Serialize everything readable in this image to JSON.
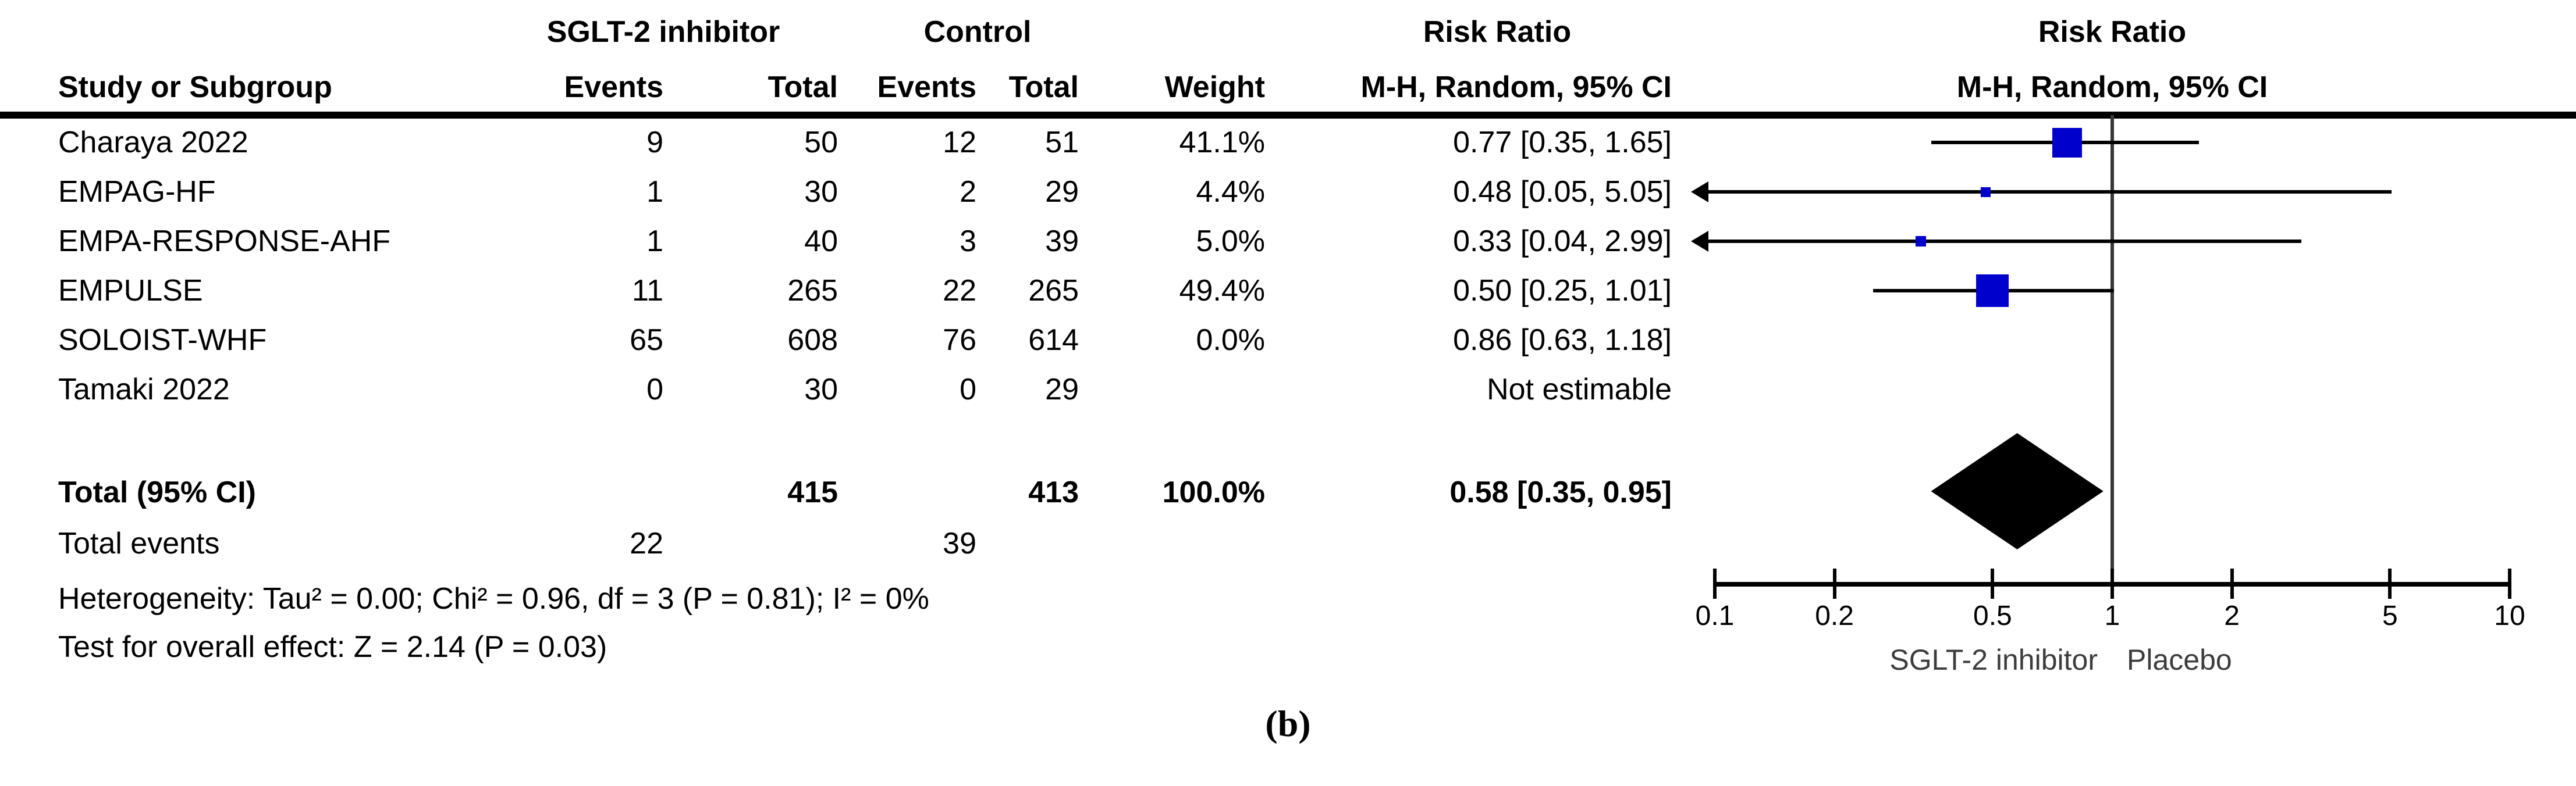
{
  "table": {
    "group1_header": "SGLT-2 inhibitor",
    "group2_header": "Control",
    "rr_header1": "Risk Ratio",
    "rr_header2": "M-H, Random, 95% CI",
    "col_headers": {
      "study": "Study or Subgroup",
      "events1": "Events",
      "total1": "Total",
      "events2": "Events",
      "total2": "Total",
      "weight": "Weight"
    },
    "rows": [
      {
        "study": "Charaya 2022",
        "e1": "9",
        "t1": "50",
        "e2": "12",
        "t2": "51",
        "weight": "41.1%",
        "rr": "0.77 [0.35, 1.65]"
      },
      {
        "study": "EMPAG-HF",
        "e1": "1",
        "t1": "30",
        "e2": "2",
        "t2": "29",
        "weight": "4.4%",
        "rr": "0.48 [0.05, 5.05]"
      },
      {
        "study": "EMPA-RESPONSE-AHF",
        "e1": "1",
        "t1": "40",
        "e2": "3",
        "t2": "39",
        "weight": "5.0%",
        "rr": "0.33 [0.04, 2.99]"
      },
      {
        "study": "EMPULSE",
        "e1": "11",
        "t1": "265",
        "e2": "22",
        "t2": "265",
        "weight": "49.4%",
        "rr": "0.50 [0.25, 1.01]"
      },
      {
        "study": "SOLOIST-WHF",
        "e1": "65",
        "t1": "608",
        "e2": "76",
        "t2": "614",
        "weight": "0.0%",
        "rr": "0.86 [0.63, 1.18]"
      },
      {
        "study": "Tamaki 2022",
        "e1": "0",
        "t1": "30",
        "e2": "0",
        "t2": "29",
        "weight": "",
        "rr": "Not estimable"
      }
    ],
    "total_row": {
      "label": "Total (95% CI)",
      "t1": "415",
      "t2": "413",
      "weight": "100.0%",
      "rr": "0.58 [0.35, 0.95]"
    },
    "total_events": {
      "label": "Total events",
      "e1": "22",
      "e2": "39"
    },
    "heterogeneity": "Heterogeneity: Tau² = 0.00; Chi² = 0.96, df = 3 (P = 0.81); I² = 0%",
    "overall_effect": "Test for overall effect: Z = 2.14 (P = 0.03)"
  },
  "plot": {
    "header_line1": "Risk Ratio",
    "header_line2": "M-H, Random, 95% CI",
    "favours_left": "SGLT-2 inhibitor",
    "favours_right": "Placebo",
    "square_color": "#0000CC"
  },
  "caption": "(b)",
  "chart_data": {
    "type": "forest",
    "effect_measure": "Risk Ratio, M-H, Random, 95% CI",
    "x_scale": "log",
    "x_range": [
      0.1,
      10
    ],
    "x_ticks": [
      0.1,
      0.2,
      0.5,
      1,
      2,
      5,
      10
    ],
    "null_line": 1,
    "studies": [
      {
        "name": "Charaya 2022",
        "events_treat": 9,
        "total_treat": 50,
        "events_ctrl": 12,
        "total_ctrl": 51,
        "weight_pct": 41.1,
        "rr": 0.77,
        "ci": [
          0.35,
          1.65
        ],
        "plotted": true,
        "arrow_low": false
      },
      {
        "name": "EMPAG-HF",
        "events_treat": 1,
        "total_treat": 30,
        "events_ctrl": 2,
        "total_ctrl": 29,
        "weight_pct": 4.4,
        "rr": 0.48,
        "ci": [
          0.05,
          5.05
        ],
        "plotted": true,
        "arrow_low": true
      },
      {
        "name": "EMPA-RESPONSE-AHF",
        "events_treat": 1,
        "total_treat": 40,
        "events_ctrl": 3,
        "total_ctrl": 39,
        "weight_pct": 5.0,
        "rr": 0.33,
        "ci": [
          0.04,
          2.99
        ],
        "plotted": true,
        "arrow_low": true
      },
      {
        "name": "EMPULSE",
        "events_treat": 11,
        "total_treat": 265,
        "events_ctrl": 22,
        "total_ctrl": 265,
        "weight_pct": 49.4,
        "rr": 0.5,
        "ci": [
          0.25,
          1.01
        ],
        "plotted": true,
        "arrow_low": false
      },
      {
        "name": "SOLOIST-WHF",
        "events_treat": 65,
        "total_treat": 608,
        "events_ctrl": 76,
        "total_ctrl": 614,
        "weight_pct": 0.0,
        "rr": 0.86,
        "ci": [
          0.63,
          1.18
        ],
        "plotted": false,
        "arrow_low": false
      },
      {
        "name": "Tamaki 2022",
        "events_treat": 0,
        "total_treat": 30,
        "events_ctrl": 0,
        "total_ctrl": 29,
        "weight_pct": null,
        "rr": null,
        "ci": null,
        "plotted": false,
        "arrow_low": false
      }
    ],
    "total": {
      "label": "Total (95% CI)",
      "total_treat": 415,
      "total_ctrl": 413,
      "weight_pct": 100.0,
      "rr": 0.58,
      "ci": [
        0.35,
        0.95
      ]
    },
    "heterogeneity": {
      "tau2": 0.0,
      "chi2": 0.96,
      "df": 3,
      "p": 0.81,
      "i2_pct": 0
    },
    "overall_effect": {
      "z": 2.14,
      "p": 0.03
    }
  }
}
